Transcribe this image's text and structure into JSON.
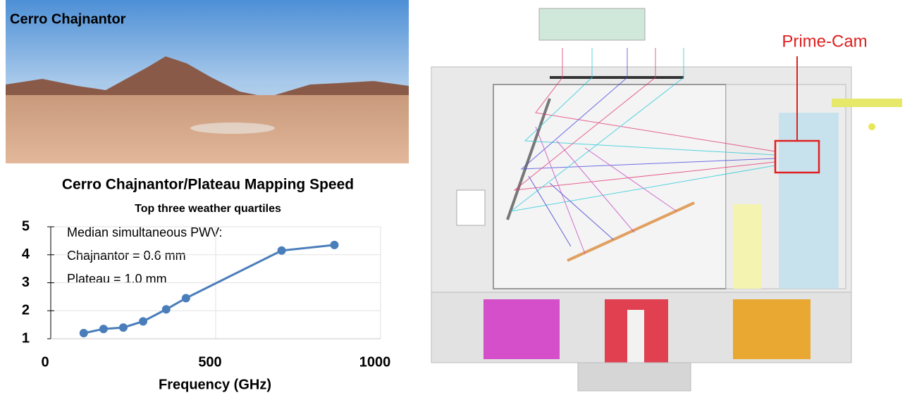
{
  "photo": {
    "label": "Cerro Chajnantor"
  },
  "chart_data": {
    "type": "line",
    "title": "Cerro Chajnantor/Plateau Mapping Speed",
    "subtitle": "Top three weather quartiles",
    "annotations": [
      "Median simultaneous PWV:",
      "Chajnantor = 0.6 mm",
      "Plateau = 1.0 mm"
    ],
    "x_label": "Frequency (GHz)",
    "x": [
      100,
      160,
      220,
      280,
      350,
      410,
      700,
      860
    ],
    "series": [
      {
        "color": "#4a7ebb",
        "values": [
          1.2,
          1.35,
          1.4,
          1.62,
          2.05,
          2.45,
          4.15,
          4.35
        ]
      }
    ],
    "xlim": [
      0,
      1000
    ],
    "xticks": [
      0,
      500,
      1000
    ],
    "ylim": [
      1,
      5
    ],
    "yticks": [
      1,
      2,
      3,
      4,
      5
    ],
    "grid": true
  },
  "diagram": {
    "label": "Prime-Cam"
  }
}
